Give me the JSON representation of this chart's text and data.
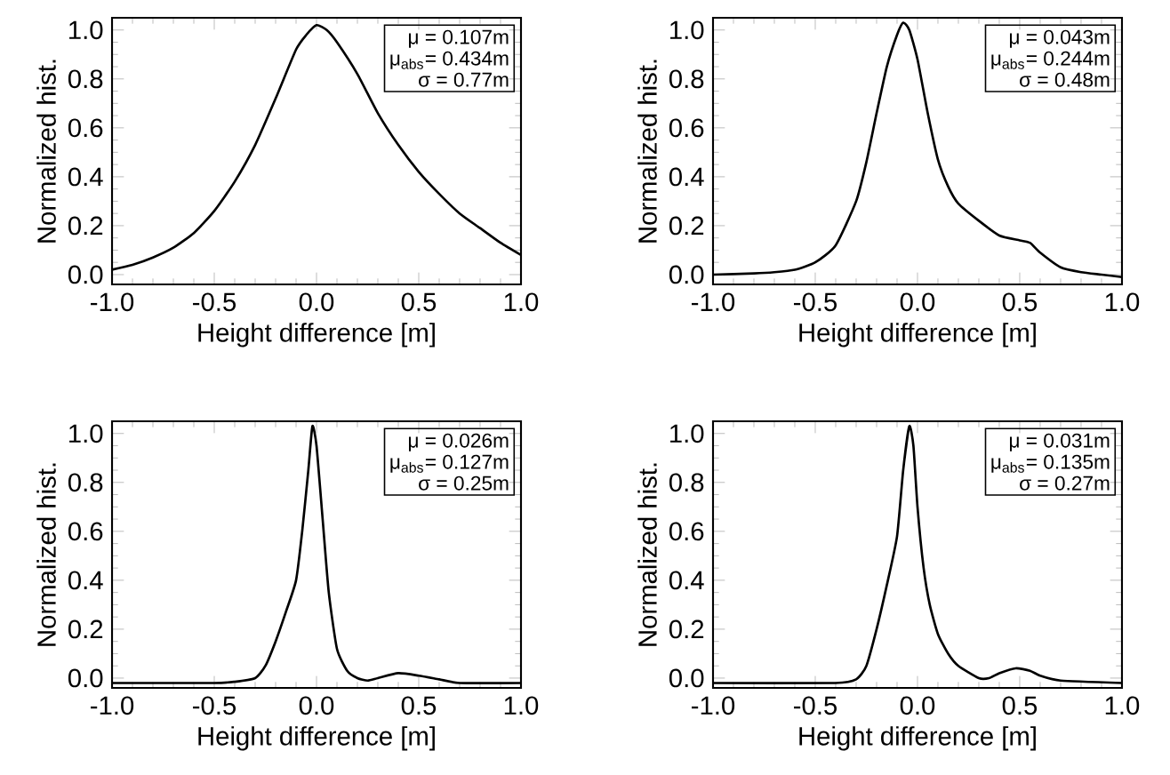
{
  "chart_data": [
    {
      "type": "line",
      "xlabel": "Height difference [m]",
      "ylabel": "Normalized hist.",
      "annotations": [
        "μ = 0.107m",
        "μ$_{abs}$= 0.434m",
        "σ =  0.77m"
      ],
      "xlim": [
        -1.0,
        1.0
      ],
      "ylim": [
        -0.04,
        1.05
      ],
      "xticks": [
        {
          "value": -1.0,
          "label": "-1.0"
        },
        {
          "value": -0.5,
          "label": "-0.5"
        },
        {
          "value": 0.0,
          "label": "0.0"
        },
        {
          "value": 0.5,
          "label": "0.5"
        },
        {
          "value": 1.0,
          "label": "1.0"
        }
      ],
      "yticks": [
        {
          "value": 0.0,
          "label": "0.0"
        },
        {
          "value": 0.2,
          "label": "0.2"
        },
        {
          "value": 0.4,
          "label": "0.4"
        },
        {
          "value": 0.6,
          "label": "0.6"
        },
        {
          "value": 0.8,
          "label": "0.8"
        },
        {
          "value": 1.0,
          "label": "1.0"
        }
      ],
      "series": [
        {
          "color": "#000000",
          "x": [
            -1.0,
            -0.9,
            -0.8,
            -0.7,
            -0.6,
            -0.5,
            -0.4,
            -0.3,
            -0.2,
            -0.1,
            -0.05,
            0.0,
            0.05,
            0.1,
            0.2,
            0.3,
            0.4,
            0.5,
            0.6,
            0.7,
            0.8,
            0.9,
            1.0
          ],
          "values": [
            0.02,
            0.04,
            0.07,
            0.11,
            0.17,
            0.26,
            0.38,
            0.53,
            0.72,
            0.92,
            0.98,
            1.02,
            1.0,
            0.95,
            0.82,
            0.66,
            0.53,
            0.42,
            0.33,
            0.25,
            0.19,
            0.13,
            0.08
          ]
        }
      ]
    },
    {
      "type": "line",
      "xlabel": "Height difference [m]",
      "ylabel": "Normalized hist.",
      "annotations": [
        "μ = 0.043m",
        "μ$_{abs}$= 0.244m",
        "σ =  0.48m"
      ],
      "xlim": [
        -1.0,
        1.0
      ],
      "ylim": [
        -0.04,
        1.05
      ],
      "xticks": [
        {
          "value": -1.0,
          "label": "-1.0"
        },
        {
          "value": -0.5,
          "label": "-0.5"
        },
        {
          "value": 0.0,
          "label": "0.0"
        },
        {
          "value": 0.5,
          "label": "0.5"
        },
        {
          "value": 1.0,
          "label": "1.0"
        }
      ],
      "yticks": [
        {
          "value": 0.0,
          "label": "0.0"
        },
        {
          "value": 0.2,
          "label": "0.2"
        },
        {
          "value": 0.4,
          "label": "0.4"
        },
        {
          "value": 0.6,
          "label": "0.6"
        },
        {
          "value": 0.8,
          "label": "0.8"
        },
        {
          "value": 1.0,
          "label": "1.0"
        }
      ],
      "series": [
        {
          "color": "#000000",
          "x": [
            -1.0,
            -0.8,
            -0.7,
            -0.6,
            -0.5,
            -0.4,
            -0.3,
            -0.25,
            -0.2,
            -0.15,
            -0.1,
            -0.07,
            -0.04,
            0.0,
            0.05,
            0.1,
            0.15,
            0.2,
            0.3,
            0.4,
            0.5,
            0.55,
            0.6,
            0.7,
            0.8,
            0.9,
            1.0
          ],
          "values": [
            0.0,
            0.005,
            0.01,
            0.02,
            0.05,
            0.12,
            0.3,
            0.46,
            0.66,
            0.85,
            0.98,
            1.03,
            1.0,
            0.88,
            0.66,
            0.47,
            0.36,
            0.29,
            0.22,
            0.16,
            0.14,
            0.13,
            0.09,
            0.03,
            0.01,
            0.0,
            -0.01
          ]
        }
      ]
    },
    {
      "type": "line",
      "xlabel": "Height difference [m]",
      "ylabel": "Normalized hist.",
      "annotations": [
        "μ = 0.026m",
        "μ$_{abs}$= 0.127m",
        "σ =  0.25m"
      ],
      "xlim": [
        -1.0,
        1.0
      ],
      "ylim": [
        -0.04,
        1.05
      ],
      "xticks": [
        {
          "value": -1.0,
          "label": "-1.0"
        },
        {
          "value": -0.5,
          "label": "-0.5"
        },
        {
          "value": 0.0,
          "label": "0.0"
        },
        {
          "value": 0.5,
          "label": "0.5"
        },
        {
          "value": 1.0,
          "label": "1.0"
        }
      ],
      "yticks": [
        {
          "value": 0.0,
          "label": "0.0"
        },
        {
          "value": 0.2,
          "label": "0.2"
        },
        {
          "value": 0.4,
          "label": "0.4"
        },
        {
          "value": 0.6,
          "label": "0.6"
        },
        {
          "value": 0.8,
          "label": "0.8"
        },
        {
          "value": 1.0,
          "label": "1.0"
        }
      ],
      "series": [
        {
          "color": "#000000",
          "x": [
            -1.0,
            -0.5,
            -0.4,
            -0.3,
            -0.25,
            -0.2,
            -0.15,
            -0.1,
            -0.07,
            -0.04,
            -0.02,
            0.0,
            0.03,
            0.06,
            0.1,
            0.15,
            0.2,
            0.25,
            0.3,
            0.4,
            0.5,
            0.6,
            0.7,
            1.0
          ],
          "values": [
            -0.02,
            -0.02,
            -0.015,
            0.0,
            0.05,
            0.15,
            0.27,
            0.4,
            0.6,
            0.85,
            1.03,
            0.95,
            0.65,
            0.35,
            0.12,
            0.03,
            0.0,
            -0.01,
            0.0,
            0.02,
            0.01,
            -0.005,
            -0.02,
            -0.02
          ]
        }
      ]
    },
    {
      "type": "line",
      "xlabel": "Height difference [m]",
      "ylabel": "Normalized hist.",
      "annotations": [
        "μ = 0.031m",
        "μ$_{abs}$= 0.135m",
        "σ =  0.27m"
      ],
      "xlim": [
        -1.0,
        1.0
      ],
      "ylim": [
        -0.04,
        1.05
      ],
      "xticks": [
        {
          "value": -1.0,
          "label": "-1.0"
        },
        {
          "value": -0.5,
          "label": "-0.5"
        },
        {
          "value": 0.0,
          "label": "0.0"
        },
        {
          "value": 0.5,
          "label": "0.5"
        },
        {
          "value": 1.0,
          "label": "1.0"
        }
      ],
      "yticks": [
        {
          "value": 0.0,
          "label": "0.0"
        },
        {
          "value": 0.2,
          "label": "0.2"
        },
        {
          "value": 0.4,
          "label": "0.4"
        },
        {
          "value": 0.6,
          "label": "0.6"
        },
        {
          "value": 0.8,
          "label": "0.8"
        },
        {
          "value": 1.0,
          "label": "1.0"
        }
      ],
      "series": [
        {
          "color": "#000000",
          "x": [
            -1.0,
            -0.4,
            -0.3,
            -0.25,
            -0.2,
            -0.15,
            -0.1,
            -0.07,
            -0.04,
            -0.02,
            0.0,
            0.03,
            0.06,
            0.1,
            0.15,
            0.2,
            0.3,
            0.35,
            0.4,
            0.48,
            0.55,
            0.6,
            0.7,
            1.0
          ],
          "values": [
            -0.02,
            -0.02,
            -0.005,
            0.05,
            0.2,
            0.38,
            0.58,
            0.85,
            1.03,
            0.95,
            0.7,
            0.45,
            0.3,
            0.18,
            0.1,
            0.05,
            0.0,
            0.0,
            0.02,
            0.04,
            0.03,
            0.01,
            -0.01,
            -0.02
          ]
        }
      ]
    }
  ]
}
